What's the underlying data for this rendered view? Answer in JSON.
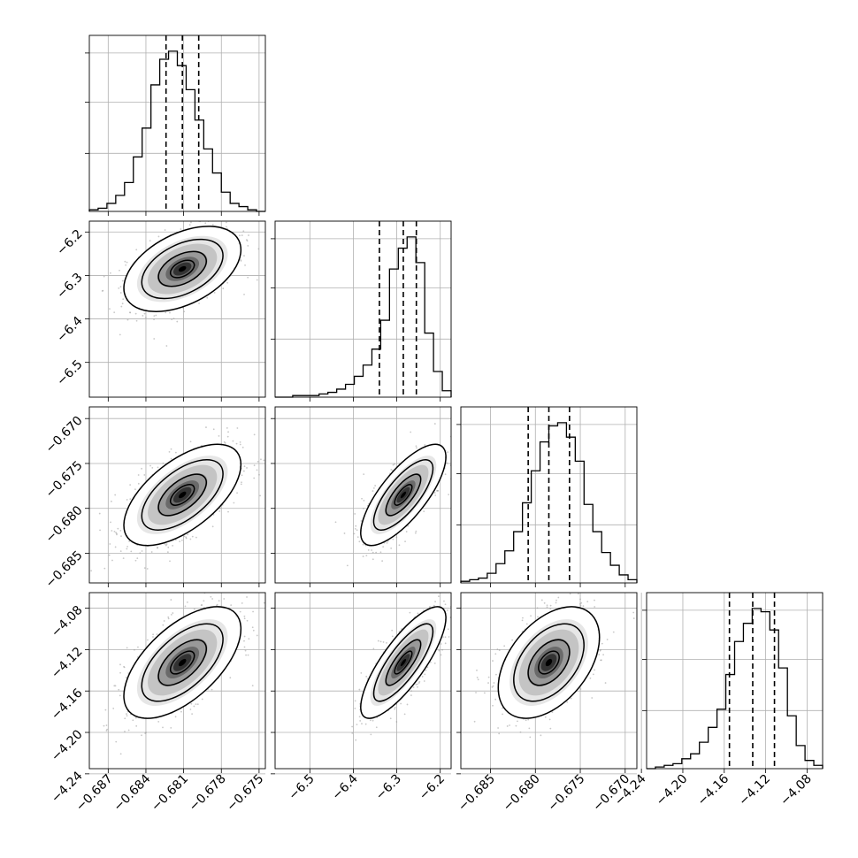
{
  "figure": {
    "type": "corner"
  },
  "chart_data": {
    "type": "corner",
    "parameters": [
      {
        "range": [
          -0.6885,
          -0.6745
        ],
        "ticks": [
          -0.687,
          -0.684,
          -0.681,
          -0.678,
          -0.675
        ],
        "tick_labels": [
          "−0.687",
          "−0.684",
          "−0.681",
          "−0.678",
          "−0.675"
        ],
        "quantiles": [
          -0.6824,
          -0.6811,
          -0.6798
        ],
        "hist_y": [
          1,
          2,
          5,
          10,
          18,
          34,
          52,
          79,
          95,
          100,
          91,
          76,
          57,
          39,
          24,
          12,
          5,
          3,
          1,
          0
        ]
      },
      {
        "range": [
          -6.58,
          -6.175
        ],
        "ticks": [
          -6.5,
          -6.4,
          -6.3,
          -6.2
        ],
        "tick_labels": [
          "−6.5",
          "−6.4",
          "−6.3",
          "−6.2"
        ],
        "quantiles": [
          -6.34,
          -6.285,
          -6.255
        ],
        "hist_y": [
          0,
          0,
          1,
          1,
          1,
          2,
          3,
          5,
          8,
          13,
          20,
          30,
          48,
          80,
          93,
          100,
          84,
          40,
          16,
          4
        ]
      },
      {
        "range": [
          -0.6883,
          -0.6687
        ],
        "ticks": [
          -0.685,
          -0.68,
          -0.675,
          -0.67
        ],
        "tick_labels": [
          "−0.685",
          "−0.680",
          "−0.675",
          "−0.670"
        ],
        "quantiles": [
          -0.6808,
          -0.6785,
          -0.6762
        ],
        "hist_y": [
          1,
          2,
          3,
          6,
          12,
          20,
          32,
          50,
          70,
          88,
          98,
          100,
          91,
          76,
          49,
          32,
          19,
          11,
          5,
          2
        ]
      },
      {
        "range": [
          -4.235,
          -4.065
        ],
        "ticks": [
          -4.24,
          -4.2,
          -4.16,
          -4.12,
          -4.08
        ],
        "tick_labels": [
          "−4.24",
          "−4.20",
          "−4.16",
          "−4.12",
          "−4.08"
        ],
        "quantiles": [
          -4.155,
          -4.1325,
          -4.1115
        ],
        "hist_y": [
          0,
          1,
          2,
          3,
          6,
          9,
          16,
          25,
          36,
          57,
          77,
          88,
          97,
          95,
          84,
          61,
          32,
          14,
          5,
          2
        ]
      }
    ],
    "pairs": [
      {
        "row": 1,
        "col": 0,
        "mean": [
          -0.6811,
          -6.285
        ],
        "sd": [
          0.0019,
          0.04
        ],
        "rho": 0.45
      },
      {
        "row": 2,
        "col": 0,
        "mean": [
          -0.6811,
          -0.6785
        ],
        "sd": [
          0.0019,
          0.0023
        ],
        "rho": 0.6
      },
      {
        "row": 2,
        "col": 1,
        "mean": [
          -6.285,
          -0.6785
        ],
        "sd": [
          0.04,
          0.0023
        ],
        "rho": 0.75
      },
      {
        "row": 3,
        "col": 0,
        "mean": [
          -0.6811,
          -4.1325
        ],
        "sd": [
          0.0019,
          0.022
        ],
        "rho": 0.6
      },
      {
        "row": 3,
        "col": 1,
        "mean": [
          -6.285,
          -4.1325
        ],
        "sd": [
          0.04,
          0.022
        ],
        "rho": 0.8
      },
      {
        "row": 3,
        "col": 2,
        "mean": [
          -0.6785,
          -4.1325
        ],
        "sd": [
          0.0023,
          0.022
        ],
        "rho": 0.45
      }
    ],
    "grid": true,
    "colors": {
      "line": "#000000",
      "grid": "#b0b0b0",
      "density": "#000000"
    }
  }
}
